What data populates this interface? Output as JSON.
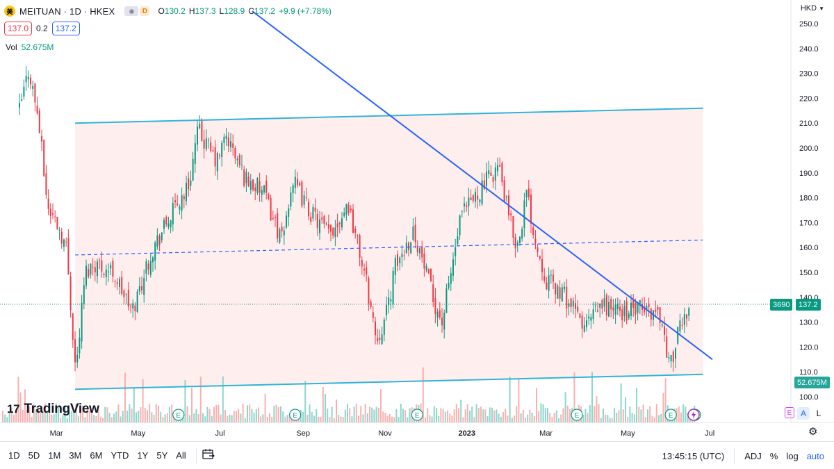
{
  "header": {
    "logo_glyph": "美",
    "symbol_title": "MEITUAN · 1D · HKEX",
    "eye_icon": "eye-icon",
    "d_badge": "D",
    "ohlc": {
      "o_key": "O",
      "o_val": "130.2",
      "h_key": "H",
      "h_val": "137.3",
      "l_key": "L",
      "l_val": "128.9",
      "c_key": "C",
      "c_val": "137.2",
      "change": "+9.9 (+7.78%)"
    },
    "bid": "137.0",
    "spread": "0.2",
    "ask": "137.2",
    "vol_label": "Vol",
    "vol_value": "52.675M",
    "currency": "HKD",
    "currency_icon": "chevron-down-icon"
  },
  "brand": {
    "mark": "17",
    "name": "TradingView"
  },
  "price_axis": {
    "ticks": [
      "250.0",
      "240.0",
      "230.0",
      "220.0",
      "210.0",
      "200.0",
      "190.0",
      "180.0",
      "170.0",
      "160.0",
      "150.0",
      "140.0",
      "130.0",
      "120.0",
      "110.0",
      "100.0"
    ],
    "last_price_label": "137.2",
    "last_price_code": "3690",
    "volume_label": "52.675M"
  },
  "time_axis": {
    "ticks": [
      "Mar",
      "May",
      "Jul",
      "Sep",
      "Nov",
      "2023",
      "Mar",
      "May",
      "Jul"
    ]
  },
  "axis_buttons": {
    "e": "E",
    "a": "A",
    "l": "L",
    "lightning_icon": "lightning-icon"
  },
  "earnings_marker": "E",
  "bottom_bar": {
    "ranges": [
      "1D",
      "5D",
      "1M",
      "3M",
      "6M",
      "YTD",
      "1Y",
      "5Y",
      "All"
    ],
    "calendar_icon": "calendar-range-icon",
    "time": "13:45:15 (UTC)",
    "adj": "ADJ",
    "percent": "%",
    "log": "log",
    "auto": "auto"
  },
  "settings_icon": "gear-icon",
  "colors": {
    "up": "#089981",
    "down": "#f23645",
    "vol_up": "#7fd3c6",
    "vol_down": "#f7a9a7",
    "channel": "#2fb4d8",
    "trendline": "#2962ff",
    "channel_fill": "#fde8e8"
  },
  "chart_data": {
    "type": "candlestick",
    "symbol": "MEITUAN",
    "exchange": "HKEX",
    "interval": "1D",
    "currency": "HKD",
    "y_range": [
      100,
      250
    ],
    "x_range": [
      "2022-02",
      "2023-07"
    ],
    "last_price": 137.2,
    "last_volume_millions": 52.675,
    "price_path": [
      {
        "date": "2022-02-01",
        "close": 215
      },
      {
        "date": "2022-02-08",
        "close": 232
      },
      {
        "date": "2022-02-15",
        "close": 212
      },
      {
        "date": "2022-02-22",
        "close": 176
      },
      {
        "date": "2022-03-01",
        "close": 170
      },
      {
        "date": "2022-03-08",
        "close": 160
      },
      {
        "date": "2022-03-15",
        "close": 110
      },
      {
        "date": "2022-03-22",
        "close": 150
      },
      {
        "date": "2022-03-29",
        "close": 154
      },
      {
        "date": "2022-04-12",
        "close": 150
      },
      {
        "date": "2022-04-26",
        "close": 134
      },
      {
        "date": "2022-05-10",
        "close": 158
      },
      {
        "date": "2022-05-24",
        "close": 172
      },
      {
        "date": "2022-06-07",
        "close": 185
      },
      {
        "date": "2022-06-14",
        "close": 207
      },
      {
        "date": "2022-06-28",
        "close": 194
      },
      {
        "date": "2022-07-05",
        "close": 205
      },
      {
        "date": "2022-07-19",
        "close": 188
      },
      {
        "date": "2022-08-02",
        "close": 182
      },
      {
        "date": "2022-08-16",
        "close": 162
      },
      {
        "date": "2022-08-23",
        "close": 187
      },
      {
        "date": "2022-09-06",
        "close": 174
      },
      {
        "date": "2022-09-20",
        "close": 165
      },
      {
        "date": "2022-10-04",
        "close": 178
      },
      {
        "date": "2022-10-18",
        "close": 145
      },
      {
        "date": "2022-10-25",
        "close": 123
      },
      {
        "date": "2022-11-01",
        "close": 132
      },
      {
        "date": "2022-11-08",
        "close": 152
      },
      {
        "date": "2022-11-22",
        "close": 167
      },
      {
        "date": "2022-12-06",
        "close": 140
      },
      {
        "date": "2022-12-13",
        "close": 130
      },
      {
        "date": "2022-12-27",
        "close": 172
      },
      {
        "date": "2023-01-10",
        "close": 183
      },
      {
        "date": "2023-01-24",
        "close": 193
      },
      {
        "date": "2023-01-31",
        "close": 174
      },
      {
        "date": "2023-02-07",
        "close": 160
      },
      {
        "date": "2023-02-14",
        "close": 182
      },
      {
        "date": "2023-02-21",
        "close": 162
      },
      {
        "date": "2023-03-01",
        "close": 147
      },
      {
        "date": "2023-03-15",
        "close": 140
      },
      {
        "date": "2023-03-29",
        "close": 128
      },
      {
        "date": "2023-04-12",
        "close": 137
      },
      {
        "date": "2023-04-26",
        "close": 134
      },
      {
        "date": "2023-05-10",
        "close": 135
      },
      {
        "date": "2023-05-24",
        "close": 134
      },
      {
        "date": "2023-06-01",
        "close": 112
      },
      {
        "date": "2023-06-08",
        "close": 127
      },
      {
        "date": "2023-06-15",
        "close": 137.2
      }
    ],
    "drawings": [
      {
        "kind": "channel_upper",
        "from": {
          "date": "2022-03-15",
          "price": 210
        },
        "to": {
          "date": "2023-06-26",
          "price": 216
        }
      },
      {
        "kind": "channel_lower",
        "from": {
          "date": "2022-03-15",
          "price": 103
        },
        "to": {
          "date": "2023-06-26",
          "price": 109
        }
      },
      {
        "kind": "channel_mid_dashed",
        "from": {
          "date": "2022-03-15",
          "price": 157
        },
        "to": {
          "date": "2023-06-26",
          "price": 163
        }
      },
      {
        "kind": "descending_trendline",
        "from": {
          "date": "2022-07-25",
          "price": 255
        },
        "to": {
          "date": "2023-07-03",
          "price": 115
        }
      }
    ],
    "earnings_dates": [
      "2022-05-31",
      "2022-08-26",
      "2022-11-25",
      "2023-03-24",
      "2023-06-02",
      "2023-06-20"
    ]
  }
}
